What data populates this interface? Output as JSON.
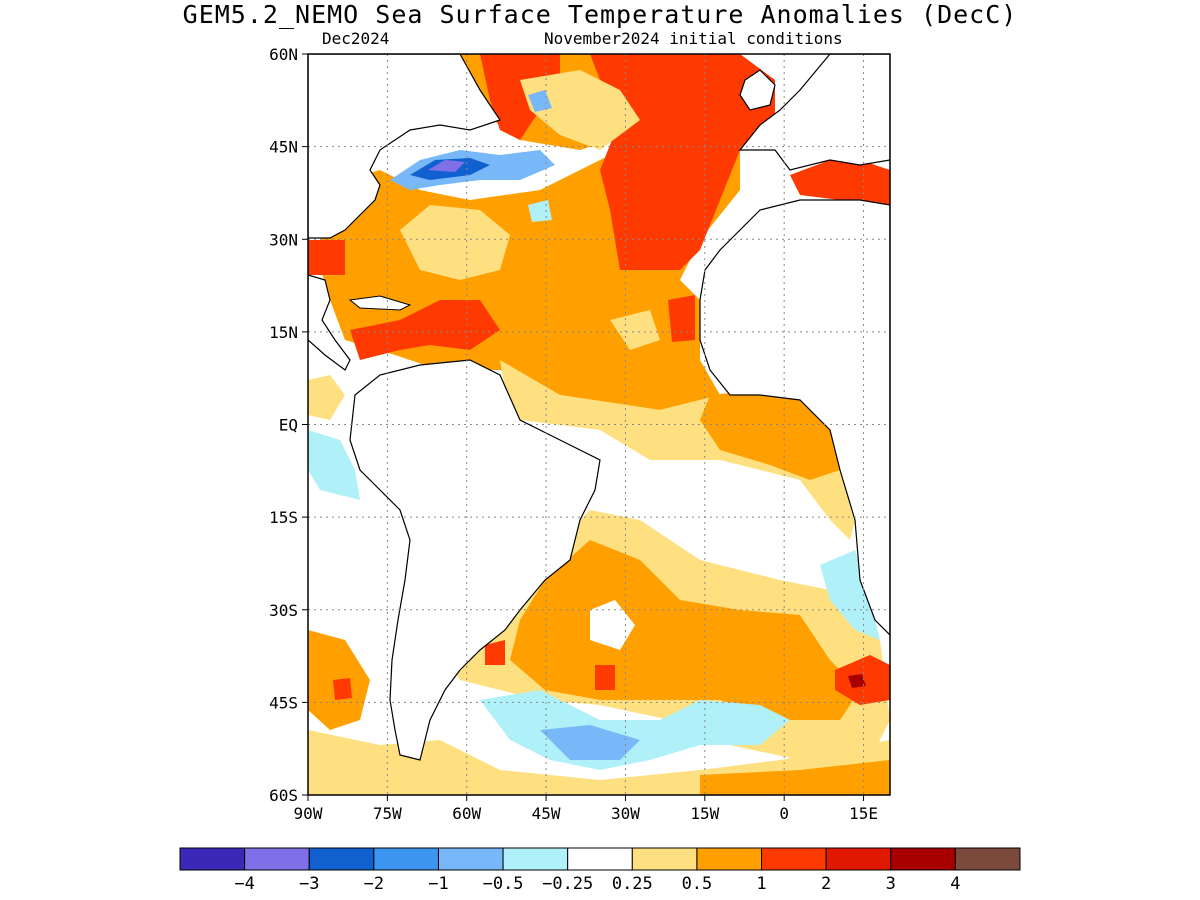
{
  "title": "GEM5.2_NEMO Sea Surface Temperature Anomalies (DecC)",
  "subtitle_left": "Dec2024",
  "subtitle_right": "November2024 initial conditions",
  "lat_labels": [
    "60N",
    "45N",
    "30N",
    "15N",
    "EQ",
    "15S",
    "30S",
    "45S",
    "60S"
  ],
  "lon_labels": [
    "90W",
    "75W",
    "60W",
    "45W",
    "30W",
    "15W",
    "0",
    "15E"
  ],
  "colorbar": {
    "colors": [
      "#3b28b8",
      "#8070e8",
      "#1060d0",
      "#3c96f0",
      "#78b8f8",
      "#b0f0f8",
      "#ffffff",
      "#ffe080",
      "#ffa000",
      "#ff3a00",
      "#e01800",
      "#a80000",
      "#7b4a3c"
    ],
    "labels": [
      "−4",
      "−3",
      "−2",
      "−1",
      "−0.5",
      "−0.25",
      "0.25",
      "0.5",
      "1",
      "2",
      "3",
      "4"
    ]
  },
  "map": {
    "lon_range": [
      -90,
      20
    ],
    "lat_range": [
      -60,
      60
    ],
    "gridlines": "dotted"
  }
}
